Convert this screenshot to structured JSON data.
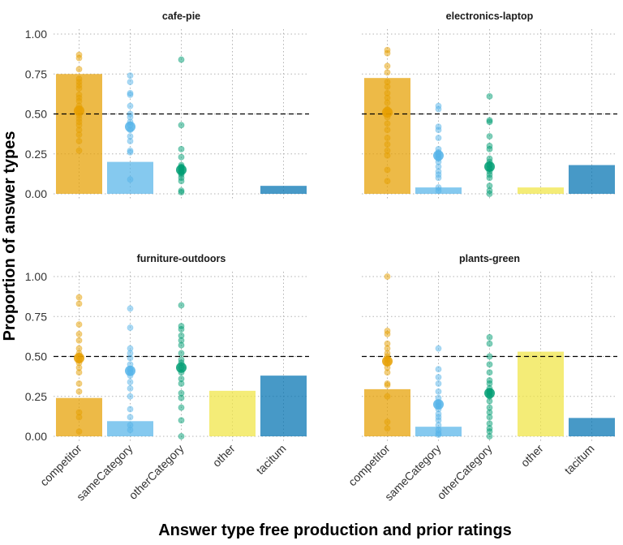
{
  "chart_data": {
    "type": "bar",
    "xlabel": "Answer type free production and prior ratings",
    "ylabel": "Proportion of answer types",
    "ylim": [
      0,
      1
    ],
    "yticks": [
      "0.00",
      "0.25",
      "0.50",
      "0.75",
      "1.00"
    ],
    "ytick_values": [
      0,
      0.25,
      0.5,
      0.75,
      1
    ],
    "reference_line": 0.5,
    "categories": [
      "competitor",
      "sameCategory",
      "otherCategory",
      "other",
      "tacitum"
    ],
    "colors": {
      "competitor": "#E69F00",
      "sameCategory": "#56B4E9",
      "otherCategory": "#009E73",
      "other": "#F0E442",
      "tacitum": "#0072B2"
    },
    "grid": true,
    "panels": [
      {
        "title": "cafe-pie",
        "bars": [
          0.75,
          0.2,
          null,
          null,
          0.05
        ],
        "means": [
          0.52,
          0.42,
          0.15,
          null,
          null
        ],
        "points": [
          [
            0.87,
            0.85,
            0.78,
            0.72,
            0.7,
            0.68,
            0.66,
            0.62,
            0.6,
            0.58,
            0.55,
            0.53,
            0.51,
            0.49,
            0.47,
            0.45,
            0.43,
            0.4,
            0.37,
            0.33,
            0.27
          ],
          [
            0.74,
            0.7,
            0.63,
            0.62,
            0.55,
            0.5,
            0.48,
            0.45,
            0.43,
            0.4,
            0.36,
            0.33,
            0.27,
            0.26,
            0.09
          ],
          [
            0.84,
            0.43,
            0.28,
            0.23,
            0.18,
            0.17,
            0.16,
            0.15,
            0.14,
            0.13,
            0.12,
            0.1,
            0.08,
            0.02,
            0.01
          ],
          [],
          []
        ]
      },
      {
        "title": "electronics-laptop",
        "bars": [
          0.725,
          0.04,
          null,
          0.04,
          0.18
        ],
        "means": [
          0.51,
          0.24,
          0.17,
          null,
          null
        ],
        "points": [
          [
            0.9,
            0.88,
            0.8,
            0.76,
            0.7,
            0.67,
            0.63,
            0.6,
            0.57,
            0.53,
            0.51,
            0.48,
            0.44,
            0.4,
            0.35,
            0.31,
            0.27,
            0.24,
            0.15,
            0.08
          ],
          [
            0.55,
            0.53,
            0.42,
            0.4,
            0.35,
            0.28,
            0.26,
            0.25,
            0.24,
            0.23,
            0.22,
            0.2,
            0.17,
            0.14,
            0.12,
            0.1,
            0.04,
            0.02
          ],
          [
            0.61,
            0.46,
            0.45,
            0.36,
            0.3,
            0.28,
            0.22,
            0.2,
            0.18,
            0.16,
            0.14,
            0.12,
            0.1,
            0.05,
            0.02,
            0.0
          ],
          [],
          []
        ]
      },
      {
        "title": "furniture-outdoors",
        "bars": [
          0.24,
          0.095,
          null,
          0.285,
          0.38
        ],
        "means": [
          0.49,
          0.41,
          0.43,
          null,
          null
        ],
        "points": [
          [
            0.87,
            0.83,
            0.7,
            0.64,
            0.6,
            0.55,
            0.52,
            0.5,
            0.48,
            0.46,
            0.43,
            0.4,
            0.33,
            0.28,
            0.15,
            0.12,
            0.03
          ],
          [
            0.8,
            0.68,
            0.55,
            0.52,
            0.49,
            0.45,
            0.42,
            0.41,
            0.4,
            0.38,
            0.34,
            0.3,
            0.25,
            0.17,
            0.12,
            0.07,
            0.04
          ],
          [
            0.82,
            0.69,
            0.67,
            0.63,
            0.6,
            0.57,
            0.52,
            0.48,
            0.46,
            0.43,
            0.4,
            0.36,
            0.33,
            0.27,
            0.24,
            0.18,
            0.1,
            0.0
          ],
          [],
          []
        ]
      },
      {
        "title": "plants-green",
        "bars": [
          0.295,
          0.06,
          null,
          0.53,
          0.115
        ],
        "means": [
          0.47,
          0.2,
          0.27,
          null,
          null
        ],
        "points": [
          [
            1.0,
            0.66,
            0.64,
            0.58,
            0.55,
            0.52,
            0.5,
            0.48,
            0.46,
            0.43,
            0.4,
            0.33,
            0.32,
            0.25,
            0.09,
            0.05
          ],
          [
            0.55,
            0.42,
            0.37,
            0.33,
            0.28,
            0.24,
            0.21,
            0.2,
            0.19,
            0.17,
            0.14,
            0.12,
            0.1,
            0.07,
            0.04,
            0.02,
            0.01
          ],
          [
            0.62,
            0.58,
            0.5,
            0.45,
            0.4,
            0.35,
            0.33,
            0.3,
            0.28,
            0.27,
            0.25,
            0.22,
            0.18,
            0.15,
            0.12,
            0.08,
            0.05,
            0.03,
            0.0
          ],
          [],
          []
        ]
      }
    ]
  }
}
